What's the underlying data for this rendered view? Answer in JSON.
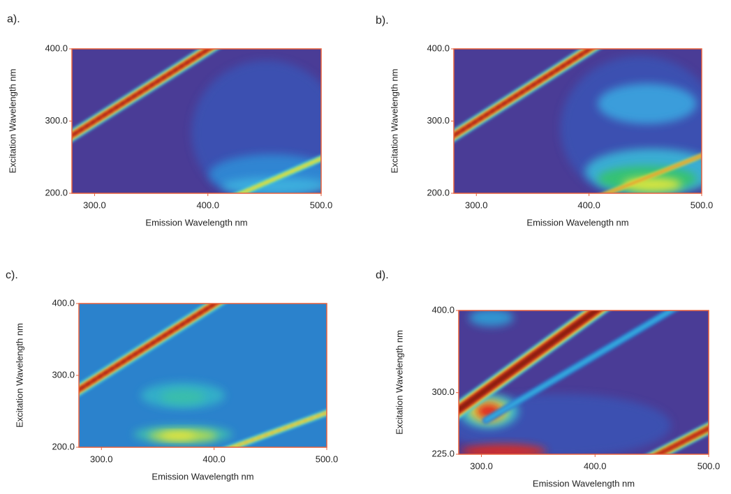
{
  "chart_data": [
    {
      "type": "contour",
      "label": "a).",
      "xlabel": "Emission Wavelength nm",
      "ylabel": "Excitation Wavelength nm",
      "color": "#4a3c96",
      "xlim": [
        280,
        500
      ],
      "ylim": [
        200,
        400
      ],
      "xticks": [
        {
          "value": 300,
          "label": "300.0"
        },
        {
          "value": 400,
          "label": "400.0"
        },
        {
          "value": 500,
          "label": "500.0"
        }
      ],
      "yticks": [
        {
          "value": 200,
          "label": "200.0"
        },
        {
          "value": 300,
          "label": "300.0"
        },
        {
          "value": 400,
          "label": "400.0"
        }
      ]
    },
    {
      "type": "contour",
      "label": "b).",
      "xlabel": "Emission Wavelength nm",
      "ylabel": "Excitation Wavelength nm",
      "color": "#4a3c96",
      "xlim": [
        280,
        500
      ],
      "ylim": [
        200,
        400
      ],
      "xticks": [
        {
          "value": 300,
          "label": "300.0"
        },
        {
          "value": 400,
          "label": "400.0"
        },
        {
          "value": 500,
          "label": "500.0"
        }
      ],
      "yticks": [
        {
          "value": 200,
          "label": "200.0"
        },
        {
          "value": 300,
          "label": "300.0"
        },
        {
          "value": 400,
          "label": "400.0"
        }
      ]
    },
    {
      "type": "contour",
      "label": "c).",
      "xlabel": "Emission Wavelength nm",
      "ylabel": "Excitation Wavelength nm",
      "color": "#2b82cc",
      "xlim": [
        280,
        500
      ],
      "ylim": [
        200,
        400
      ],
      "xticks": [
        {
          "value": 300,
          "label": "300.0"
        },
        {
          "value": 400,
          "label": "400.0"
        },
        {
          "value": 500,
          "label": "500.0"
        }
      ],
      "yticks": [
        {
          "value": 200,
          "label": "200.0"
        },
        {
          "value": 300,
          "label": "300.0"
        },
        {
          "value": 400,
          "label": "400.0"
        }
      ]
    },
    {
      "type": "contour",
      "label": "d).",
      "xlabel": "Emission Wavelength nm",
      "ylabel": "Excitation Wavelength nm",
      "color": "#4a3c96",
      "xlim": [
        280,
        500
      ],
      "ylim": [
        225,
        400
      ],
      "xticks": [
        {
          "value": 300,
          "label": "300.0"
        },
        {
          "value": 400,
          "label": "400.0"
        },
        {
          "value": 500,
          "label": "500.0"
        }
      ],
      "yticks": [
        {
          "value": 225,
          "label": "225.0"
        },
        {
          "value": 300,
          "label": "300.0"
        },
        {
          "value": 400,
          "label": "400.0"
        }
      ]
    }
  ]
}
